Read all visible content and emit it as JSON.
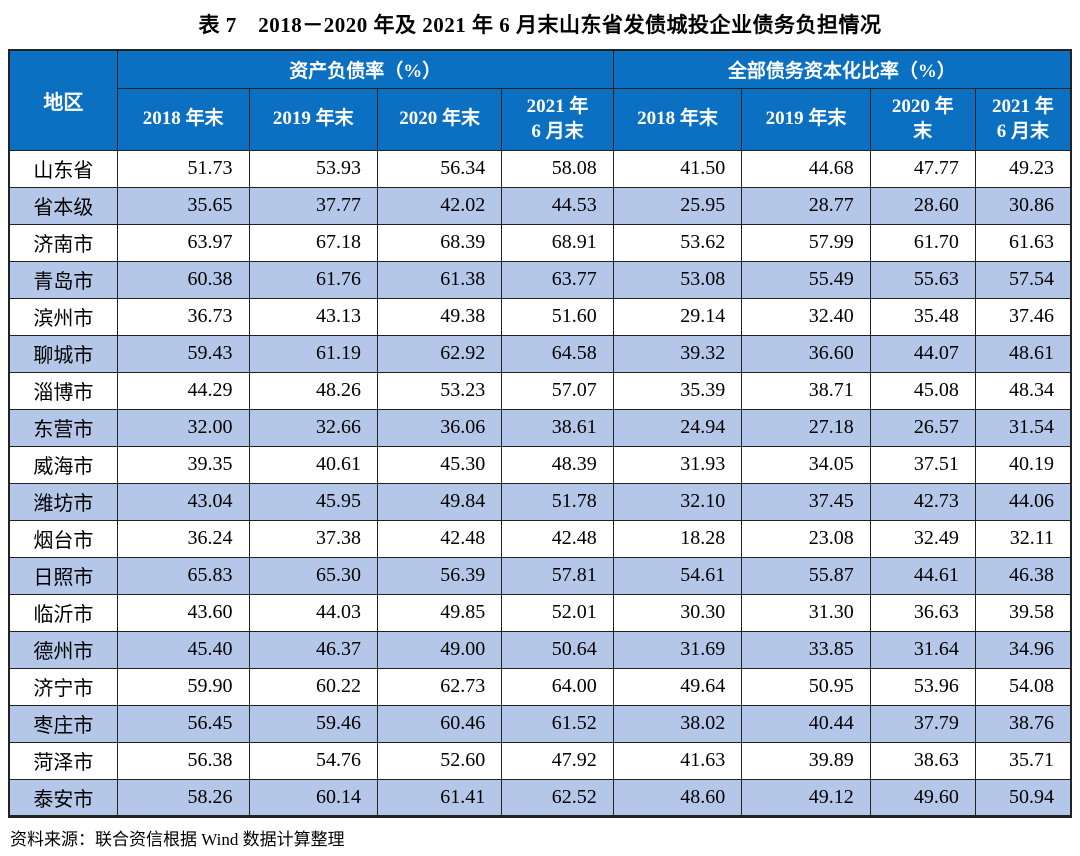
{
  "title": "表 7　2018－2020 年及 2021 年 6 月末山东省发债城投企业债务负担情况",
  "source_note": "资料来源：联合资信根据 Wind 数据计算整理",
  "colors": {
    "header_bg": "#0C70C2",
    "header_text": "#FFFFFF",
    "alt_row_bg": "#B5C7E8",
    "grid_line": "#222222",
    "text": "#000000"
  },
  "table": {
    "region_header": "地区",
    "group_headers": [
      "资产负债率（%）",
      "全部债务资本化比率（%）"
    ],
    "sub_headers": [
      "2018 年末",
      "2019 年末",
      "2020 年末",
      "2021 年\n6 月末",
      "2018 年末",
      "2019 年末",
      "2020 年\n末",
      "2021 年\n6 月末"
    ],
    "column_widths": [
      "10.2%",
      "12.4%",
      "12.1%",
      "11.7%",
      "10.5%",
      "12.1%",
      "12.1%",
      "9.9%",
      "9.0%"
    ],
    "rows": [
      {
        "region": "山东省",
        "values": [
          "51.73",
          "53.93",
          "56.34",
          "58.08",
          "41.50",
          "44.68",
          "47.77",
          "49.23"
        ]
      },
      {
        "region": "省本级",
        "values": [
          "35.65",
          "37.77",
          "42.02",
          "44.53",
          "25.95",
          "28.77",
          "28.60",
          "30.86"
        ]
      },
      {
        "region": "济南市",
        "values": [
          "63.97",
          "67.18",
          "68.39",
          "68.91",
          "53.62",
          "57.99",
          "61.70",
          "61.63"
        ]
      },
      {
        "region": "青岛市",
        "values": [
          "60.38",
          "61.76",
          "61.38",
          "63.77",
          "53.08",
          "55.49",
          "55.63",
          "57.54"
        ]
      },
      {
        "region": "滨州市",
        "values": [
          "36.73",
          "43.13",
          "49.38",
          "51.60",
          "29.14",
          "32.40",
          "35.48",
          "37.46"
        ]
      },
      {
        "region": "聊城市",
        "values": [
          "59.43",
          "61.19",
          "62.92",
          "64.58",
          "39.32",
          "36.60",
          "44.07",
          "48.61"
        ]
      },
      {
        "region": "淄博市",
        "values": [
          "44.29",
          "48.26",
          "53.23",
          "57.07",
          "35.39",
          "38.71",
          "45.08",
          "48.34"
        ]
      },
      {
        "region": "东营市",
        "values": [
          "32.00",
          "32.66",
          "36.06",
          "38.61",
          "24.94",
          "27.18",
          "26.57",
          "31.54"
        ]
      },
      {
        "region": "威海市",
        "values": [
          "39.35",
          "40.61",
          "45.30",
          "48.39",
          "31.93",
          "34.05",
          "37.51",
          "40.19"
        ]
      },
      {
        "region": "潍坊市",
        "values": [
          "43.04",
          "45.95",
          "49.84",
          "51.78",
          "32.10",
          "37.45",
          "42.73",
          "44.06"
        ]
      },
      {
        "region": "烟台市",
        "values": [
          "36.24",
          "37.38",
          "42.48",
          "42.48",
          "18.28",
          "23.08",
          "32.49",
          "32.11"
        ]
      },
      {
        "region": "日照市",
        "values": [
          "65.83",
          "65.30",
          "56.39",
          "57.81",
          "54.61",
          "55.87",
          "44.61",
          "46.38"
        ]
      },
      {
        "region": "临沂市",
        "values": [
          "43.60",
          "44.03",
          "49.85",
          "52.01",
          "30.30",
          "31.30",
          "36.63",
          "39.58"
        ]
      },
      {
        "region": "德州市",
        "values": [
          "45.40",
          "46.37",
          "49.00",
          "50.64",
          "31.69",
          "33.85",
          "31.64",
          "34.96"
        ]
      },
      {
        "region": "济宁市",
        "values": [
          "59.90",
          "60.22",
          "62.73",
          "64.00",
          "49.64",
          "50.95",
          "53.96",
          "54.08"
        ]
      },
      {
        "region": "枣庄市",
        "values": [
          "56.45",
          "59.46",
          "60.46",
          "61.52",
          "38.02",
          "40.44",
          "37.79",
          "38.76"
        ]
      },
      {
        "region": "菏泽市",
        "values": [
          "56.38",
          "54.76",
          "52.60",
          "47.92",
          "41.63",
          "39.89",
          "38.63",
          "35.71"
        ]
      },
      {
        "region": "泰安市",
        "values": [
          "58.26",
          "60.14",
          "61.41",
          "62.52",
          "48.60",
          "49.12",
          "49.60",
          "50.94"
        ]
      }
    ]
  }
}
